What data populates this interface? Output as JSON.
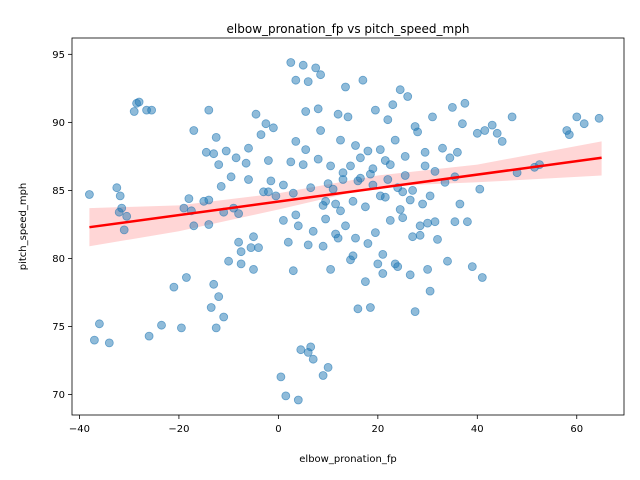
{
  "chart_data": {
    "type": "scatter",
    "title": "elbow_pronation_fp vs pitch_speed_mph",
    "xlabel": "elbow_pronation_fp",
    "ylabel": "pitch_speed_mph",
    "xlim": [
      -41.5,
      69.5
    ],
    "ylim": [
      68.5,
      96.2
    ],
    "xticks": [
      -40,
      -20,
      0,
      20,
      40,
      60
    ],
    "yticks": [
      70,
      75,
      80,
      85,
      90,
      95
    ],
    "grid": false,
    "legend": "none",
    "colors": {
      "points": "#1f77b4",
      "regression": "#ff0000",
      "ci_band": "#ff9999",
      "axes": "#000000"
    },
    "regression": {
      "x": [
        -38,
        65
      ],
      "y": [
        82.3,
        87.4
      ]
    },
    "ci_band": {
      "x": [
        -38,
        -20,
        0,
        20,
        40,
        65
      ],
      "upper": [
        83.7,
        83.9,
        84.8,
        86.1,
        86.9,
        88.6
      ],
      "lower": [
        80.9,
        82.0,
        83.6,
        85.3,
        85.6,
        86.1
      ]
    },
    "points": [
      [
        -38.0,
        84.7
      ],
      [
        -37.0,
        74.0
      ],
      [
        -36.0,
        75.2
      ],
      [
        -34.0,
        73.8
      ],
      [
        -32.5,
        85.2
      ],
      [
        -32.0,
        83.4
      ],
      [
        -31.8,
        84.6
      ],
      [
        -31.5,
        83.7
      ],
      [
        -31.0,
        82.1
      ],
      [
        -30.5,
        83.1
      ],
      [
        -29.0,
        90.8
      ],
      [
        -28.5,
        91.4
      ],
      [
        -28.0,
        91.5
      ],
      [
        -26.5,
        90.9
      ],
      [
        -26.0,
        74.3
      ],
      [
        -25.5,
        90.9
      ],
      [
        -23.5,
        75.1
      ],
      [
        -21.0,
        77.9
      ],
      [
        -19.5,
        74.9
      ],
      [
        -19.0,
        83.7
      ],
      [
        -18.5,
        78.6
      ],
      [
        -18.0,
        84.4
      ],
      [
        -17.5,
        83.5
      ],
      [
        -17.0,
        82.4
      ],
      [
        -17.0,
        89.4
      ],
      [
        -14.5,
        87.8
      ],
      [
        -14.0,
        90.9
      ],
      [
        -14.0,
        82.5
      ],
      [
        -14.0,
        84.3
      ],
      [
        -13.5,
        76.4
      ],
      [
        -13.0,
        78.1
      ],
      [
        -12.5,
        74.9
      ],
      [
        -12.5,
        88.9
      ],
      [
        -12.0,
        77.2
      ],
      [
        -12.0,
        86.9
      ],
      [
        -11.5,
        85.3
      ],
      [
        -11.0,
        83.4
      ],
      [
        -11.0,
        75.7
      ],
      [
        -10.5,
        87.9
      ],
      [
        -10.0,
        79.8
      ],
      [
        -9.5,
        86.0
      ],
      [
        -9.0,
        83.7
      ],
      [
        -8.5,
        87.4
      ],
      [
        -8.0,
        81.2
      ],
      [
        -7.5,
        80.5
      ],
      [
        -7.5,
        79.6
      ],
      [
        -6.5,
        87.0
      ],
      [
        -6.0,
        85.8
      ],
      [
        -5.5,
        80.8
      ],
      [
        -5.0,
        81.6
      ],
      [
        -5.0,
        79.2
      ],
      [
        -4.5,
        90.6
      ],
      [
        -4.0,
        80.8
      ],
      [
        -3.5,
        89.1
      ],
      [
        -3.0,
        84.9
      ],
      [
        -2.5,
        89.9
      ],
      [
        -2.0,
        87.2
      ],
      [
        -1.5,
        85.7
      ],
      [
        -1.0,
        89.6
      ],
      [
        -0.5,
        84.6
      ],
      [
        0.5,
        71.3
      ],
      [
        1.0,
        82.8
      ],
      [
        1.5,
        69.9
      ],
      [
        2.0,
        81.2
      ],
      [
        2.5,
        94.4
      ],
      [
        3.0,
        79.1
      ],
      [
        3.5,
        88.6
      ],
      [
        3.5,
        93.1
      ],
      [
        4.0,
        82.4
      ],
      [
        4.0,
        69.6
      ],
      [
        4.5,
        73.3
      ],
      [
        5.0,
        94.2
      ],
      [
        5.0,
        86.9
      ],
      [
        5.5,
        90.8
      ],
      [
        6.0,
        93.0
      ],
      [
        6.0,
        73.1
      ],
      [
        6.5,
        73.5
      ],
      [
        7.0,
        72.6
      ],
      [
        7.5,
        94.0
      ],
      [
        8.0,
        91.0
      ],
      [
        8.0,
        87.3
      ],
      [
        8.5,
        93.5
      ],
      [
        9.0,
        71.4
      ],
      [
        9.0,
        80.9
      ],
      [
        9.5,
        82.9
      ],
      [
        10.0,
        72.0
      ],
      [
        10.5,
        79.2
      ],
      [
        11.0,
        85.1
      ],
      [
        11.5,
        81.8
      ],
      [
        12.0,
        90.6
      ],
      [
        12.5,
        83.5
      ],
      [
        13.0,
        86.3
      ],
      [
        13.5,
        92.6
      ],
      [
        14.0,
        90.4
      ],
      [
        14.5,
        79.9
      ],
      [
        15.0,
        84.2
      ],
      [
        15.5,
        88.3
      ],
      [
        16.0,
        76.3
      ],
      [
        16.5,
        85.9
      ],
      [
        17.0,
        93.1
      ],
      [
        17.5,
        78.3
      ],
      [
        18.0,
        87.9
      ],
      [
        18.5,
        76.4
      ],
      [
        19.0,
        85.4
      ],
      [
        19.5,
        90.9
      ],
      [
        20.0,
        79.6
      ],
      [
        20.5,
        88.0
      ],
      [
        21.0,
        78.9
      ],
      [
        21.5,
        84.5
      ],
      [
        22.0,
        90.2
      ],
      [
        22.5,
        86.9
      ],
      [
        23.0,
        91.3
      ],
      [
        23.5,
        79.6
      ],
      [
        24.0,
        85.2
      ],
      [
        24.5,
        92.4
      ],
      [
        25.0,
        83.0
      ],
      [
        25.5,
        87.5
      ],
      [
        26.0,
        91.9
      ],
      [
        26.5,
        78.8
      ],
      [
        27.0,
        85.0
      ],
      [
        27.5,
        76.1
      ],
      [
        28.0,
        89.3
      ],
      [
        28.5,
        82.4
      ],
      [
        29.0,
        84.0
      ],
      [
        29.5,
        87.8
      ],
      [
        30.0,
        79.2
      ],
      [
        30.5,
        77.6
      ],
      [
        31.0,
        90.4
      ],
      [
        31.5,
        86.4
      ],
      [
        32.0,
        81.4
      ],
      [
        33.0,
        88.1
      ],
      [
        34.0,
        79.8
      ],
      [
        35.0,
        91.1
      ],
      [
        35.5,
        82.7
      ],
      [
        36.0,
        87.8
      ],
      [
        36.5,
        84.0
      ],
      [
        37.0,
        89.9
      ],
      [
        37.5,
        91.4
      ],
      [
        38.0,
        82.7
      ],
      [
        39.0,
        79.4
      ],
      [
        40.0,
        89.2
      ],
      [
        40.5,
        85.1
      ],
      [
        41.0,
        78.6
      ],
      [
        41.5,
        89.4
      ],
      [
        43.0,
        89.8
      ],
      [
        44.0,
        89.2
      ],
      [
        45.0,
        88.6
      ],
      [
        47.0,
        90.4
      ],
      [
        48.0,
        86.3
      ],
      [
        51.5,
        86.7
      ],
      [
        52.5,
        86.9
      ],
      [
        58.0,
        89.4
      ],
      [
        58.5,
        89.1
      ],
      [
        60.0,
        90.4
      ],
      [
        61.5,
        89.9
      ],
      [
        64.5,
        90.3
      ],
      [
        -15.0,
        84.2
      ],
      [
        -13.0,
        87.7
      ],
      [
        -8.0,
        83.3
      ],
      [
        -6.0,
        88.1
      ],
      [
        -2.0,
        84.9
      ],
      [
        1.0,
        85.4
      ],
      [
        2.5,
        87.1
      ],
      [
        3.0,
        84.8
      ],
      [
        5.5,
        88.0
      ],
      [
        6.5,
        85.2
      ],
      [
        7.0,
        82.0
      ],
      [
        8.5,
        89.4
      ],
      [
        9.5,
        84.2
      ],
      [
        10.5,
        86.8
      ],
      [
        11.5,
        84.0
      ],
      [
        12.5,
        88.7
      ],
      [
        13.5,
        82.4
      ],
      [
        14.5,
        86.8
      ],
      [
        15.5,
        81.5
      ],
      [
        16.5,
        87.4
      ],
      [
        17.5,
        83.8
      ],
      [
        18.5,
        86.2
      ],
      [
        19.5,
        81.9
      ],
      [
        20.5,
        84.6
      ],
      [
        21.5,
        87.2
      ],
      [
        22.5,
        82.8
      ],
      [
        23.5,
        88.7
      ],
      [
        24.5,
        83.6
      ],
      [
        25.5,
        86.1
      ],
      [
        26.5,
        84.3
      ],
      [
        27.5,
        89.7
      ],
      [
        28.5,
        81.7
      ],
      [
        29.5,
        86.8
      ],
      [
        30.5,
        84.6
      ],
      [
        31.5,
        82.7
      ],
      [
        33.5,
        85.6
      ],
      [
        34.5,
        87.4
      ],
      [
        35.5,
        86.0
      ],
      [
        3.5,
        83.2
      ],
      [
        6.0,
        81.0
      ],
      [
        9.0,
        83.9
      ],
      [
        12.0,
        81.5
      ],
      [
        15.0,
        80.2
      ],
      [
        18.0,
        81.1
      ],
      [
        21.0,
        80.3
      ],
      [
        24.0,
        79.4
      ],
      [
        27.0,
        81.6
      ],
      [
        30.0,
        82.6
      ],
      [
        10.0,
        85.5
      ],
      [
        13.0,
        85.8
      ],
      [
        16.0,
        85.7
      ],
      [
        19.0,
        86.6
      ],
      [
        22.0,
        85.8
      ],
      [
        25.0,
        84.9
      ]
    ]
  }
}
